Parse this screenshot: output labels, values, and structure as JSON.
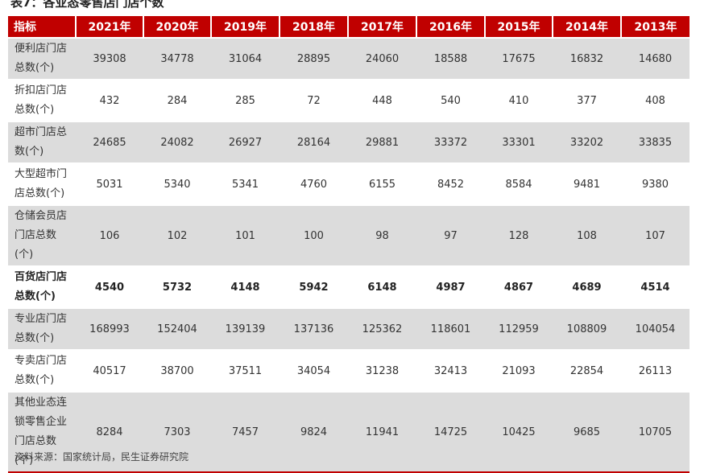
{
  "title": "表7：各业态零售店门店个数",
  "header": {
    "label": "指标",
    "years": [
      "2021年",
      "2020年",
      "2019年",
      "2018年",
      "2017年",
      "2016年",
      "2015年",
      "2014年",
      "2013年"
    ]
  },
  "rows": [
    {
      "label": "便利店门店总数(个)",
      "bold": false,
      "values": [
        "39308",
        "34778",
        "31064",
        "28895",
        "24060",
        "18588",
        "17675",
        "16832",
        "14680"
      ]
    },
    {
      "label": "折扣店门店总数(个)",
      "bold": false,
      "values": [
        "432",
        "284",
        "285",
        "72",
        "448",
        "540",
        "410",
        "377",
        "408"
      ]
    },
    {
      "label": "超市门店总数(个)",
      "bold": false,
      "values": [
        "24685",
        "24082",
        "26927",
        "28164",
        "29881",
        "33372",
        "33301",
        "33202",
        "33835"
      ]
    },
    {
      "label": "大型超市门店总数(个)",
      "bold": false,
      "values": [
        "5031",
        "5340",
        "5341",
        "4760",
        "6155",
        "8452",
        "8584",
        "9481",
        "9380"
      ]
    },
    {
      "label": "仓储会员店门店总数(个)",
      "bold": false,
      "values": [
        "106",
        "102",
        "101",
        "100",
        "98",
        "97",
        "128",
        "108",
        "107"
      ]
    },
    {
      "label": "百货店门店总数(个)",
      "bold": true,
      "values": [
        "4540",
        "5732",
        "4148",
        "5942",
        "6148",
        "4987",
        "4867",
        "4689",
        "4514"
      ]
    },
    {
      "label": "专业店门店总数(个)",
      "bold": false,
      "values": [
        "168993",
        "152404",
        "139139",
        "137136",
        "125362",
        "118601",
        "112959",
        "108809",
        "104054"
      ]
    },
    {
      "label": "专卖店门店总数(个)",
      "bold": false,
      "values": [
        "40517",
        "38700",
        "37511",
        "34054",
        "31238",
        "32413",
        "21093",
        "22854",
        "26113"
      ]
    },
    {
      "label": "其他业态连锁零售企业门店总数(个)",
      "bold": false,
      "values": [
        "8284",
        "7303",
        "7457",
        "9824",
        "11941",
        "14725",
        "10425",
        "9685",
        "10705"
      ]
    }
  ],
  "source": "资料来源：国家统计局，民生证券研究院",
  "colors": {
    "header_bg": "#c00000",
    "stripe": "#dcdcdc",
    "text": "#333333"
  }
}
